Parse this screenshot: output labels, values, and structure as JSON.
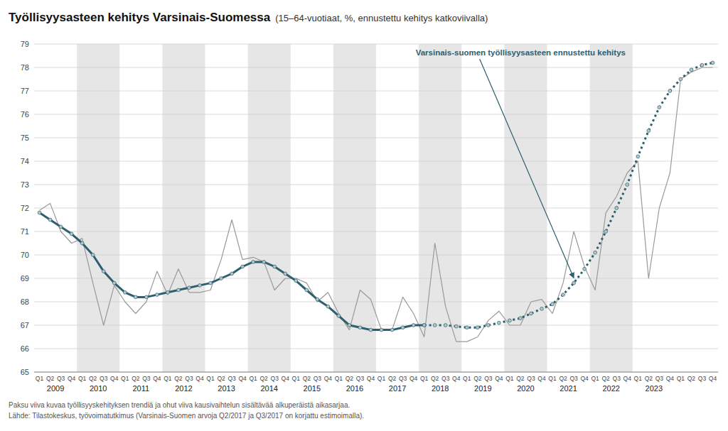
{
  "chart_data": {
    "type": "line",
    "title": "Työllisyysasteen kehitys Varsinais-Suomessa",
    "subtitle": "(15–64-vuotiaat, %, ennustettu kehitys katkoviivalla)",
    "annotation": "Varsinais-suomen työllisyysasteen ennustettu kehitys",
    "notes": [
      "Paksu viiva kuvaa työllisyyskehityksen trendiä ja ohut viiva kausivaihtelun sisältävää alkuperäistä aikasarjaa.",
      "Lähde: Tilastokeskus, työvoimatutkimus (Varsinais-Suomen arvoja Q2/2017 ja Q3/2017 on korjattu estimoimalla)."
    ],
    "categories": [
      "Q1",
      "Q2",
      "Q3",
      "Q4",
      "Q1",
      "Q2",
      "Q3",
      "Q4",
      "Q1",
      "Q2",
      "Q3",
      "Q4",
      "Q1",
      "Q2",
      "Q3",
      "Q4",
      "Q1",
      "Q2",
      "Q3",
      "Q4",
      "Q1",
      "Q2",
      "Q3",
      "Q4",
      "Q1",
      "Q2",
      "Q3",
      "Q4",
      "Q1",
      "Q2",
      "Q3",
      "Q4",
      "Q1",
      "Q2",
      "Q3",
      "Q4",
      "Q1",
      "Q2",
      "Q3",
      "Q4",
      "Q1",
      "Q2",
      "Q3",
      "Q4",
      "Q1",
      "Q2",
      "Q3",
      "Q4",
      "Q1",
      "Q2",
      "Q3",
      "Q4",
      "Q1",
      "Q2",
      "Q3",
      "Q4",
      "Q1",
      "Q2",
      "Q3",
      "Q4",
      "Q1",
      "Q2",
      "Q3",
      "Q4"
    ],
    "groups": [
      2009,
      2010,
      2011,
      2012,
      2013,
      2014,
      2015,
      2016,
      2017,
      2018,
      2019,
      2020,
      2021,
      2022,
      2023
    ],
    "series": [
      {
        "color": "#999999",
        "values": [
          71.9,
          72.2,
          71.0,
          70.5,
          70.7,
          68.8,
          67.0,
          68.7,
          68.0,
          67.5,
          68.0,
          69.3,
          68.3,
          69.4,
          68.4,
          68.4,
          68.5,
          69.8,
          71.5,
          69.8,
          69.9,
          69.7,
          68.5,
          69.0,
          69.0,
          68.8,
          68.0,
          68.4,
          67.5,
          66.8,
          68.5,
          68.1,
          66.8,
          66.8,
          68.2,
          67.5,
          66.5,
          70.5,
          67.8,
          66.3,
          66.3,
          66.5,
          67.2,
          67.6,
          67.0,
          67.0,
          68.0,
          68.1,
          67.5,
          68.8,
          71.0,
          69.5,
          68.5,
          71.8,
          72.5,
          73.5,
          74.0,
          69.0,
          72.0,
          73.5,
          77.5,
          77.8,
          78.0,
          78.0
        ]
      },
      {
        "color": "#2e5f6e",
        "marker": "circle",
        "line_style": "solid",
        "values": [
          71.8,
          71.5,
          71.2,
          70.9,
          70.5,
          70.0,
          69.3,
          68.8,
          68.4,
          68.2,
          68.2,
          68.3,
          68.4,
          68.5,
          68.6,
          68.7,
          68.8,
          69.0,
          69.2,
          69.5,
          69.7,
          69.7,
          69.5,
          69.2,
          68.9,
          68.5,
          68.1,
          67.8,
          67.4,
          67.0,
          66.9,
          66.8,
          66.8,
          66.8,
          66.9,
          67.0,
          67.0,
          null,
          null,
          null,
          null,
          null,
          null,
          null,
          null,
          null,
          null,
          null,
          null,
          null,
          null,
          null,
          null,
          null,
          null,
          null,
          null,
          null,
          null,
          null,
          null,
          null,
          null,
          null
        ]
      },
      {
        "color": "#2e5f6e",
        "marker": "circle",
        "line_style": "dashed",
        "values": [
          null,
          null,
          null,
          null,
          null,
          null,
          null,
          null,
          null,
          null,
          null,
          null,
          null,
          null,
          null,
          null,
          null,
          null,
          null,
          null,
          null,
          null,
          null,
          null,
          null,
          null,
          null,
          null,
          null,
          null,
          null,
          null,
          null,
          null,
          null,
          null,
          67.0,
          67.0,
          67.0,
          66.95,
          66.9,
          66.9,
          67.0,
          67.1,
          67.2,
          67.3,
          67.5,
          67.7,
          67.9,
          68.3,
          68.8,
          69.4,
          70.1,
          71.0,
          72.0,
          73.0,
          74.2,
          75.3,
          76.3,
          77.0,
          77.5,
          77.9,
          78.1,
          78.2
        ]
      }
    ],
    "ylim": [
      65,
      79
    ],
    "yticks": [
      65,
      66,
      67,
      68,
      69,
      70,
      71,
      72,
      73,
      74,
      75,
      76,
      77,
      78,
      79
    ],
    "grid": true
  }
}
